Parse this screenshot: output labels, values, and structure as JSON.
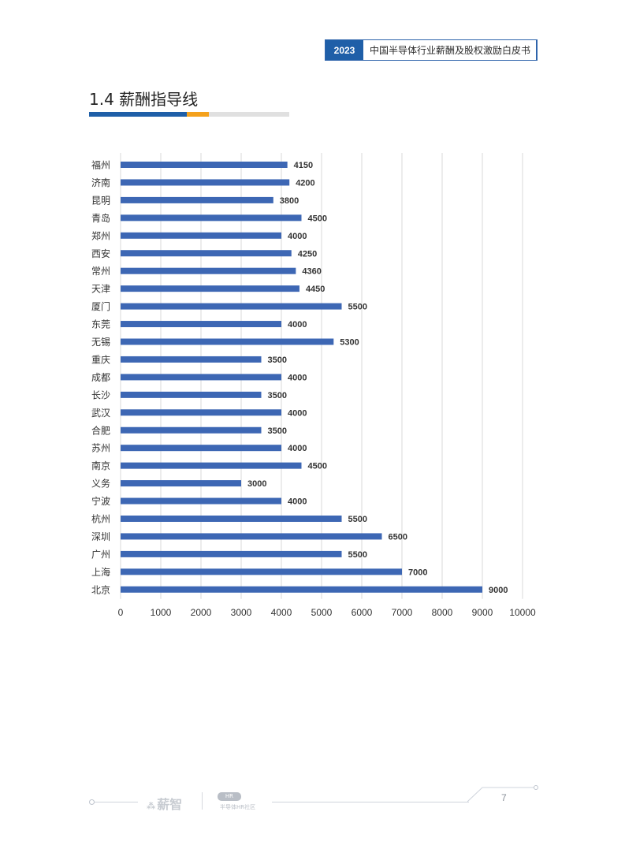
{
  "header": {
    "year": "2023",
    "title": "中国半导体行业薪酬及股权激励白皮书"
  },
  "section": {
    "title": "1.4 薪酬指导线"
  },
  "colors": {
    "brand_blue": "#1f5fa8",
    "accent_orange": "#f4a11c",
    "bar": "#3d67b4"
  },
  "chart_data": {
    "type": "bar",
    "orientation": "horizontal",
    "categories": [
      "福州",
      "济南",
      "昆明",
      "青岛",
      "郑州",
      "西安",
      "常州",
      "天津",
      "厦门",
      "东莞",
      "无锡",
      "重庆",
      "成都",
      "长沙",
      "武汉",
      "合肥",
      "苏州",
      "南京",
      "义务",
      "宁波",
      "杭州",
      "深圳",
      "广州",
      "上海",
      "北京"
    ],
    "values": [
      4150,
      4200,
      3800,
      4500,
      4000,
      4250,
      4360,
      4450,
      5500,
      4000,
      5300,
      3500,
      4000,
      3500,
      4000,
      3500,
      4000,
      4500,
      3000,
      4000,
      5500,
      6500,
      5500,
      7000,
      9000
    ],
    "data_labels": [
      "4150",
      "4200",
      "3800",
      "4500",
      "4000",
      "4250",
      "4360",
      "4450",
      "5500",
      "4000",
      "5300",
      "3500",
      "4000",
      "3500",
      "4000",
      "3500",
      "4000",
      "4500",
      "3000",
      "4000",
      "5500",
      "6500",
      "5500",
      "7000",
      "9000"
    ],
    "xlim": [
      0,
      10000
    ],
    "x_ticks": [
      "0",
      "1000",
      "2000",
      "3000",
      "4000",
      "5000",
      "6000",
      "7000",
      "8000",
      "9000",
      "10000"
    ],
    "grid": true,
    "legend": "none"
  },
  "footer": {
    "brand": "薪智",
    "brand_icon": "薪智-logo-icon",
    "partner_logo_text": "半导体HR社区",
    "page_number": "7"
  }
}
